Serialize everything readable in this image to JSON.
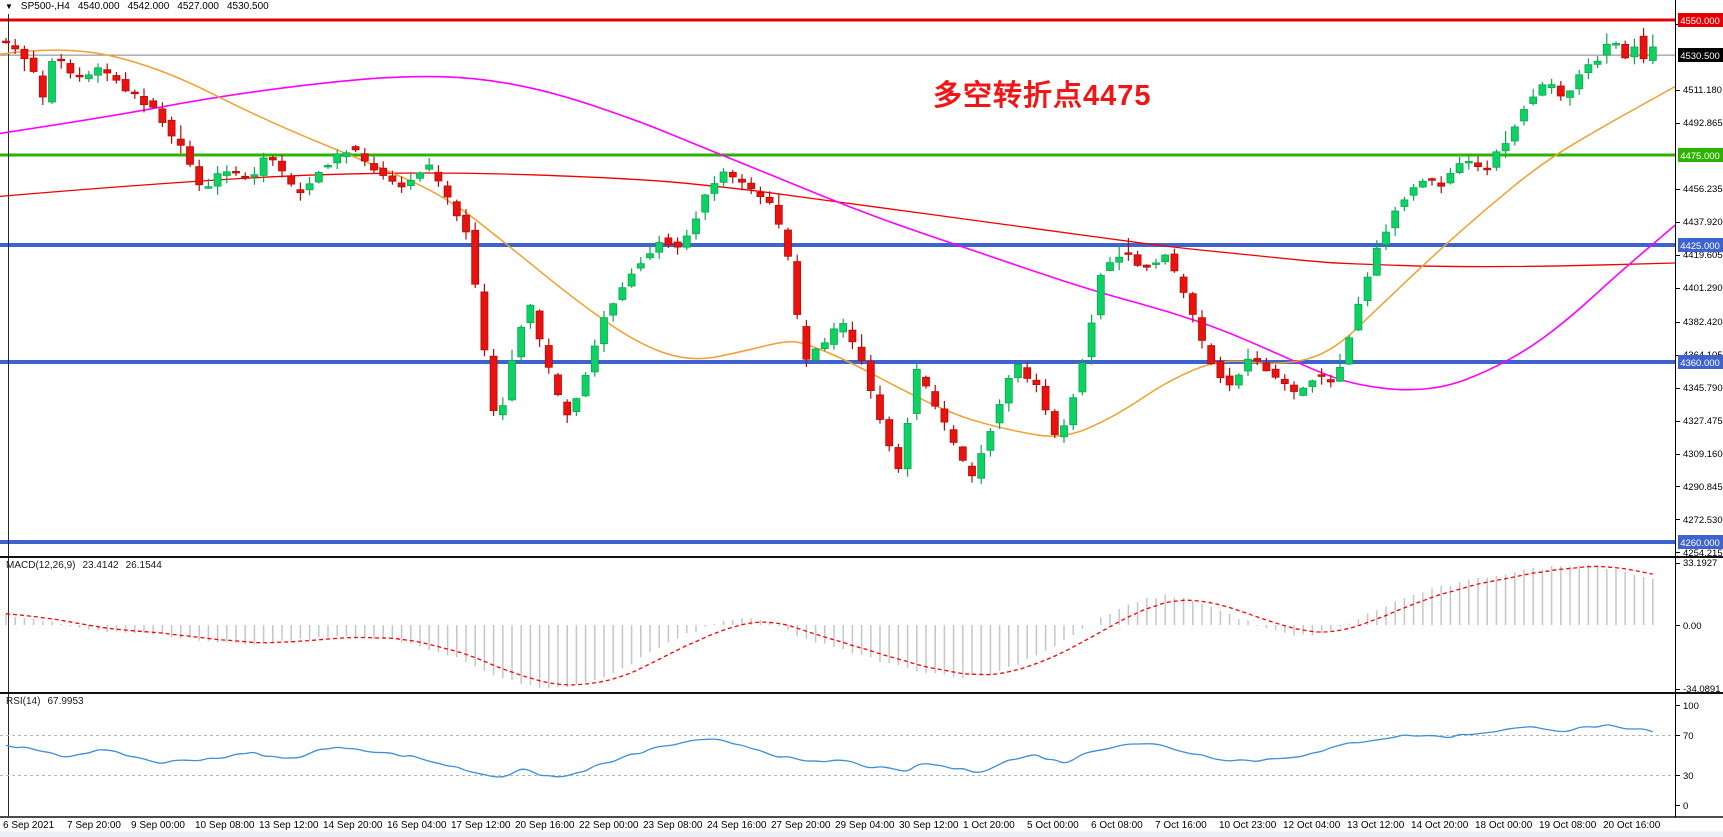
{
  "title": {
    "collapse_icon": "▼",
    "symbol": "SP500-,H4",
    "open": "4540.000",
    "high": "4542.000",
    "low": "4527.000",
    "close": "4530.500"
  },
  "annotation": {
    "text": "多空转折点4475",
    "color": "#f21515"
  },
  "macd_panel": {
    "label": "MACD(12,26,9)",
    "main_value": "23.4142",
    "signal_value": "26.1544",
    "axis_max": "33.1927",
    "axis_zero": "0.00",
    "axis_min": "-34.0891"
  },
  "rsi_panel": {
    "label": "RSI(14)",
    "value": "67.9953",
    "axis_labels": [
      "100",
      "70",
      "30",
      "0"
    ],
    "dashed_levels": [
      70,
      30
    ]
  },
  "price_axis": {
    "ticks": [
      "4547.810",
      "4511.180",
      "4492.865",
      "4456.235",
      "4437.920",
      "4419.605",
      "4401.290",
      "4382.420",
      "4364.105",
      "4345.790",
      "4327.475",
      "4309.160",
      "4290.845",
      "4272.530",
      "4254.215"
    ],
    "badges": [
      {
        "label": "4550.000",
        "price": 4550.0,
        "color": "#e60000"
      },
      {
        "label": "4530.500",
        "price": 4530.5,
        "color": "#000000"
      },
      {
        "label": "4475.000",
        "price": 4475.0,
        "color": "#2db200"
      },
      {
        "label": "4425.000",
        "price": 4425.0,
        "color": "#3e63cf"
      },
      {
        "label": "4360.000",
        "price": 4360.0,
        "color": "#3e63cf"
      },
      {
        "label": "4260.000",
        "price": 4260.0,
        "color": "#3e63cf"
      }
    ]
  },
  "time_axis": {
    "labels": [
      "6 Sep 2021",
      "7 Sep 20:00",
      "9 Sep 00:00",
      "10 Sep 08:00",
      "13 Sep 12:00",
      "14 Sep 20:00",
      "16 Sep 04:00",
      "17 Sep 12:00",
      "20 Sep 16:00",
      "22 Sep 00:00",
      "23 Sep 08:00",
      "24 Sep 16:00",
      "27 Sep 20:00",
      "29 Sep 04:00",
      "30 Sep 12:00",
      "1 Oct 20:00",
      "5 Oct 00:00",
      "6 Oct 08:00",
      "7 Oct 16:00",
      "10 Oct 23:00",
      "12 Oct 04:00",
      "13 Oct 12:00",
      "14 Oct 20:00",
      "18 Oct 00:00",
      "19 Oct 08:00",
      "20 Oct 16:00"
    ]
  },
  "colors": {
    "bull": "#0ed164",
    "bull_border": "#0aa94f",
    "bear": "#ea120e",
    "bear_border": "#b60c08",
    "ma_fast": "#f0a030",
    "ma_mid": "#ff00ff",
    "ma_slow": "#ee0000",
    "bid_line": "#808080",
    "macd_hist": "#c6c6c6",
    "macd_signal": "#ff0000",
    "rsi_line": "#3d8fd6",
    "level_grid_dash": "#b5b5b5",
    "separator": "#111111",
    "bottom_strip": "#ebeff5"
  },
  "chart_data": {
    "type": "candlestick",
    "symbol": "SP500-",
    "timeframe": "H4",
    "current_bar": {
      "open": 4540.0,
      "high": 4542.0,
      "low": 4527.0,
      "close": 4530.5
    },
    "price_range_visible": [
      4254.215,
      4557.0
    ],
    "horizontal_levels": [
      {
        "price": 4550.0,
        "color": "#e60000",
        "width": 3
      },
      {
        "price": 4475.0,
        "color": "#2db200",
        "width": 3
      },
      {
        "price": 4425.0,
        "color": "#3e63cf",
        "width": 4
      },
      {
        "price": 4360.0,
        "color": "#3e63cf",
        "width": 4
      },
      {
        "price": 4260.0,
        "color": "#3e63cf",
        "width": 4
      }
    ],
    "bid_price": 4530.5,
    "price_path": [
      [
        2,
        4540
      ],
      [
        32,
        4528
      ],
      [
        48,
        4505
      ],
      [
        58,
        4531
      ],
      [
        80,
        4517
      ],
      [
        106,
        4523
      ],
      [
        138,
        4508
      ],
      [
        159,
        4500
      ],
      [
        186,
        4478
      ],
      [
        207,
        4456
      ],
      [
        229,
        4467
      ],
      [
        255,
        4460
      ],
      [
        271,
        4477
      ],
      [
        303,
        4452
      ],
      [
        319,
        4465
      ],
      [
        356,
        4480
      ],
      [
        383,
        4464
      ],
      [
        409,
        4456
      ],
      [
        431,
        4470
      ],
      [
        452,
        4450
      ],
      [
        473,
        4430
      ],
      [
        494,
        4345
      ],
      [
        502,
        4322
      ],
      [
        516,
        4360
      ],
      [
        532,
        4395
      ],
      [
        547,
        4365
      ],
      [
        569,
        4330
      ],
      [
        585,
        4345
      ],
      [
        611,
        4388
      ],
      [
        638,
        4412
      ],
      [
        664,
        4428
      ],
      [
        686,
        4422
      ],
      [
        707,
        4450
      ],
      [
        728,
        4466
      ],
      [
        750,
        4458
      ],
      [
        776,
        4448
      ],
      [
        792,
        4420
      ],
      [
        808,
        4360
      ],
      [
        829,
        4370
      ],
      [
        845,
        4383
      ],
      [
        866,
        4360
      ],
      [
        888,
        4322
      ],
      [
        904,
        4300
      ],
      [
        920,
        4355
      ],
      [
        941,
        4335
      ],
      [
        962,
        4308
      ],
      [
        978,
        4296
      ],
      [
        999,
        4330
      ],
      [
        1020,
        4360
      ],
      [
        1042,
        4345
      ],
      [
        1063,
        4315
      ],
      [
        1084,
        4352
      ],
      [
        1106,
        4410
      ],
      [
        1127,
        4422
      ],
      [
        1148,
        4412
      ],
      [
        1169,
        4420
      ],
      [
        1191,
        4395
      ],
      [
        1212,
        4362
      ],
      [
        1233,
        4346
      ],
      [
        1254,
        4362
      ],
      [
        1276,
        4355
      ],
      [
        1297,
        4342
      ],
      [
        1318,
        4352
      ],
      [
        1339,
        4348
      ],
      [
        1361,
        4390
      ],
      [
        1382,
        4425
      ],
      [
        1403,
        4448
      ],
      [
        1424,
        4462
      ],
      [
        1446,
        4458
      ],
      [
        1467,
        4472
      ],
      [
        1488,
        4466
      ],
      [
        1510,
        4483
      ],
      [
        1531,
        4505
      ],
      [
        1552,
        4515
      ],
      [
        1568,
        4505
      ],
      [
        1584,
        4520
      ],
      [
        1600,
        4527
      ],
      [
        1616,
        4542
      ],
      [
        1632,
        4528
      ],
      [
        1646,
        4540
      ],
      [
        1660,
        4532
      ]
    ],
    "ma_fast_orange": [
      [
        0,
        4531
      ],
      [
        64,
        4536
      ],
      [
        159,
        4524
      ],
      [
        266,
        4494
      ],
      [
        372,
        4470
      ],
      [
        446,
        4452
      ],
      [
        510,
        4424
      ],
      [
        574,
        4395
      ],
      [
        638,
        4370
      ],
      [
        691,
        4360
      ],
      [
        744,
        4366
      ],
      [
        787,
        4372
      ],
      [
        808,
        4370
      ],
      [
        850,
        4360
      ],
      [
        904,
        4344
      ],
      [
        957,
        4330
      ],
      [
        1010,
        4322
      ],
      [
        1063,
        4317
      ],
      [
        1116,
        4330
      ],
      [
        1169,
        4350
      ],
      [
        1222,
        4362
      ],
      [
        1276,
        4358
      ],
      [
        1329,
        4364
      ],
      [
        1382,
        4392
      ],
      [
        1435,
        4420
      ],
      [
        1488,
        4446
      ],
      [
        1541,
        4470
      ],
      [
        1594,
        4488
      ],
      [
        1675,
        4513
      ]
    ],
    "ma_mid_magenta": [
      [
        0,
        4487
      ],
      [
        106,
        4496
      ],
      [
        213,
        4507
      ],
      [
        319,
        4515
      ],
      [
        404,
        4519
      ],
      [
        478,
        4518
      ],
      [
        553,
        4510
      ],
      [
        638,
        4494
      ],
      [
        691,
        4482
      ],
      [
        744,
        4470
      ],
      [
        797,
        4458
      ],
      [
        850,
        4446
      ],
      [
        904,
        4435
      ],
      [
        957,
        4425
      ],
      [
        1010,
        4415
      ],
      [
        1063,
        4405
      ],
      [
        1116,
        4396
      ],
      [
        1169,
        4388
      ],
      [
        1222,
        4378
      ],
      [
        1276,
        4365
      ],
      [
        1329,
        4352
      ],
      [
        1361,
        4347
      ],
      [
        1403,
        4344
      ],
      [
        1446,
        4346
      ],
      [
        1488,
        4355
      ],
      [
        1531,
        4368
      ],
      [
        1573,
        4386
      ],
      [
        1616,
        4408
      ],
      [
        1675,
        4436
      ]
    ],
    "ma_slow_red": [
      [
        0,
        4452
      ],
      [
        213,
        4462
      ],
      [
        425,
        4466
      ],
      [
        638,
        4462
      ],
      [
        744,
        4456
      ],
      [
        797,
        4452
      ],
      [
        850,
        4448
      ],
      [
        904,
        4444
      ],
      [
        957,
        4440
      ],
      [
        1010,
        4436
      ],
      [
        1063,
        4432
      ],
      [
        1116,
        4428
      ],
      [
        1169,
        4424
      ],
      [
        1222,
        4421
      ],
      [
        1276,
        4418
      ],
      [
        1329,
        4415
      ],
      [
        1382,
        4414
      ],
      [
        1435,
        4413
      ],
      [
        1541,
        4413
      ],
      [
        1675,
        4415
      ]
    ],
    "macd": {
      "params": [
        12,
        26,
        9
      ],
      "final_main": 23.4142,
      "final_signal": 26.1544,
      "axis_range": [
        -34.0891,
        33.1927
      ],
      "main_path": [
        [
          0,
          6
        ],
        [
          43,
          2
        ],
        [
          85,
          -2
        ],
        [
          128,
          -4
        ],
        [
          170,
          -6
        ],
        [
          213,
          -9
        ],
        [
          255,
          -10
        ],
        [
          298,
          -8
        ],
        [
          340,
          -6
        ],
        [
          383,
          -7
        ],
        [
          425,
          -12
        ],
        [
          468,
          -20
        ],
        [
          500,
          -28
        ],
        [
          532,
          -33
        ],
        [
          563,
          -34
        ],
        [
          595,
          -30
        ],
        [
          627,
          -22
        ],
        [
          659,
          -12
        ],
        [
          691,
          -4
        ],
        [
          723,
          2
        ],
        [
          744,
          4
        ],
        [
          776,
          0
        ],
        [
          808,
          -8
        ],
        [
          840,
          -13
        ],
        [
          872,
          -18
        ],
        [
          904,
          -23
        ],
        [
          936,
          -26
        ],
        [
          967,
          -28
        ],
        [
          994,
          -26
        ],
        [
          1020,
          -20
        ],
        [
          1052,
          -12
        ],
        [
          1084,
          -2
        ],
        [
          1116,
          8
        ],
        [
          1148,
          14
        ],
        [
          1169,
          16
        ],
        [
          1201,
          12
        ],
        [
          1233,
          5
        ],
        [
          1265,
          -2
        ],
        [
          1297,
          -6
        ],
        [
          1329,
          -4
        ],
        [
          1361,
          4
        ],
        [
          1393,
          12
        ],
        [
          1424,
          18
        ],
        [
          1456,
          22
        ],
        [
          1488,
          26
        ],
        [
          1520,
          29
        ],
        [
          1552,
          31
        ],
        [
          1584,
          33
        ],
        [
          1616,
          30
        ],
        [
          1642,
          26
        ],
        [
          1660,
          23.4
        ]
      ]
    },
    "rsi": {
      "period": 14,
      "final": 67.9953,
      "axis_range": [
        0,
        100
      ],
      "path": [
        [
          0,
          62
        ],
        [
          32,
          55
        ],
        [
          64,
          48
        ],
        [
          96,
          55
        ],
        [
          128,
          50
        ],
        [
          159,
          42
        ],
        [
          191,
          45
        ],
        [
          223,
          48
        ],
        [
          255,
          52
        ],
        [
          287,
          45
        ],
        [
          319,
          55
        ],
        [
          351,
          58
        ],
        [
          383,
          52
        ],
        [
          415,
          48
        ],
        [
          446,
          40
        ],
        [
          478,
          32
        ],
        [
          500,
          28
        ],
        [
          521,
          35
        ],
        [
          542,
          30
        ],
        [
          563,
          27
        ],
        [
          585,
          35
        ],
        [
          617,
          45
        ],
        [
          648,
          55
        ],
        [
          680,
          62
        ],
        [
          712,
          65
        ],
        [
          744,
          60
        ],
        [
          776,
          50
        ],
        [
          808,
          42
        ],
        [
          840,
          45
        ],
        [
          872,
          38
        ],
        [
          904,
          33
        ],
        [
          925,
          42
        ],
        [
          957,
          36
        ],
        [
          978,
          33
        ],
        [
          1010,
          45
        ],
        [
          1036,
          50
        ],
        [
          1063,
          42
        ],
        [
          1095,
          55
        ],
        [
          1127,
          62
        ],
        [
          1159,
          60
        ],
        [
          1191,
          52
        ],
        [
          1223,
          46
        ],
        [
          1254,
          44
        ],
        [
          1286,
          48
        ],
        [
          1318,
          52
        ],
        [
          1350,
          62
        ],
        [
          1382,
          67
        ],
        [
          1414,
          70
        ],
        [
          1446,
          68
        ],
        [
          1478,
          72
        ],
        [
          1510,
          76
        ],
        [
          1542,
          78
        ],
        [
          1563,
          74
        ],
        [
          1584,
          77
        ],
        [
          1605,
          80
        ],
        [
          1626,
          74
        ],
        [
          1647,
          76
        ],
        [
          1660,
          68
        ]
      ]
    }
  }
}
